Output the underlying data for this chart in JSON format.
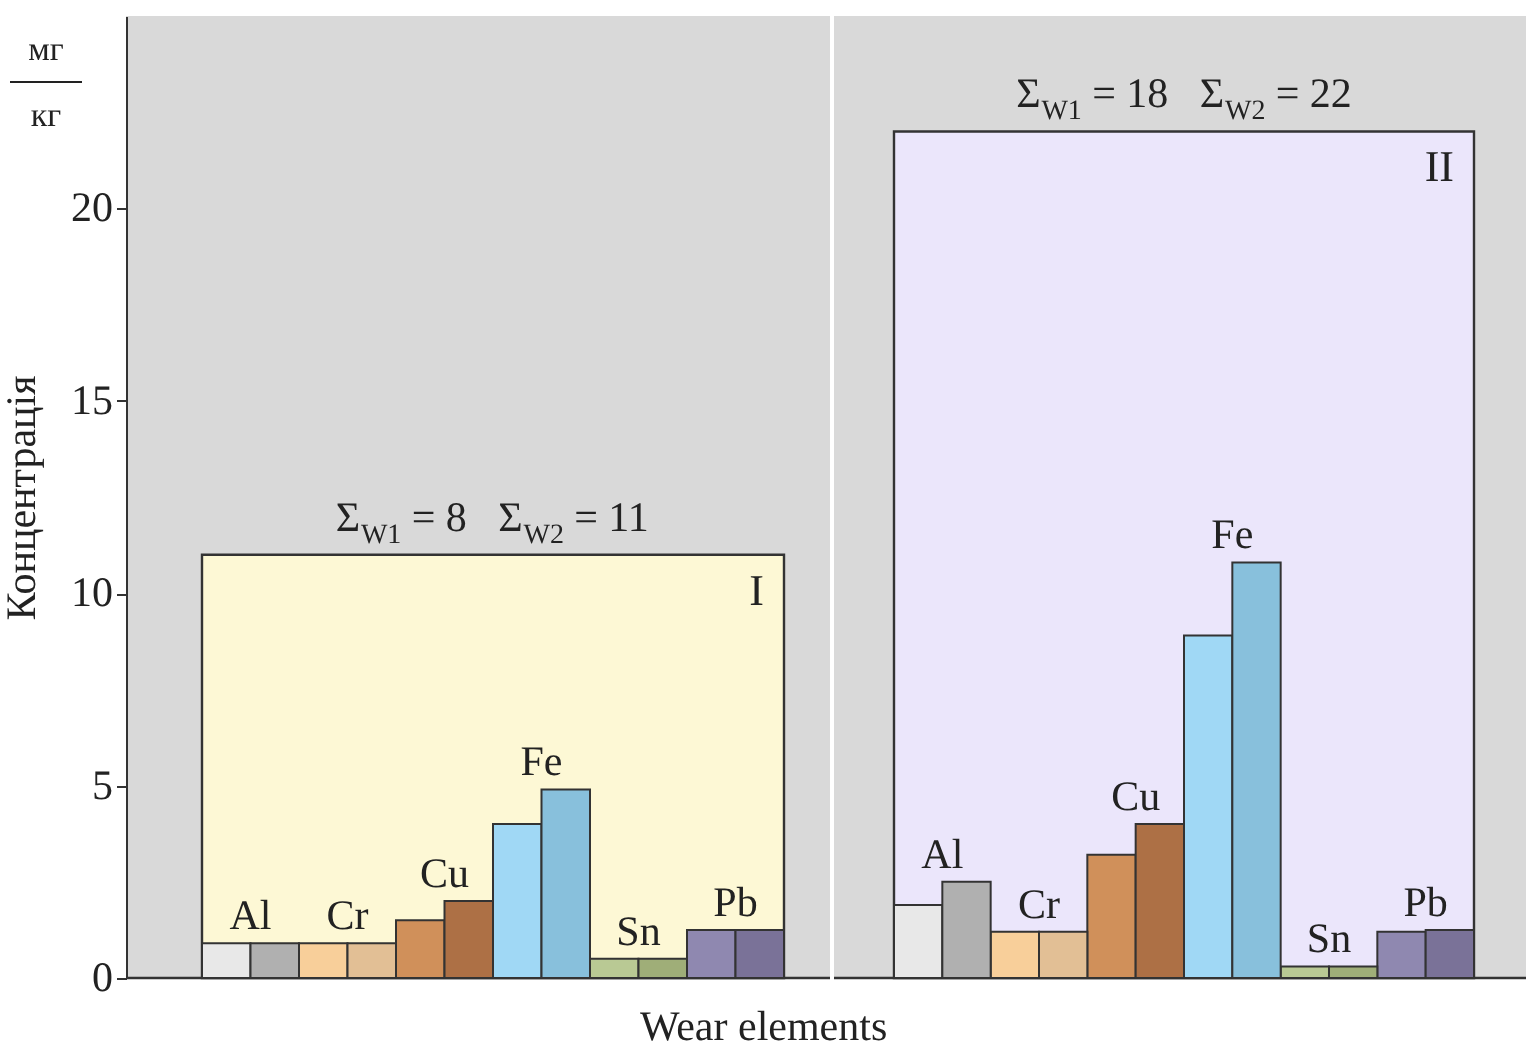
{
  "chart_data": [
    {
      "type": "bar",
      "ylabel": "Концентрація",
      "xlabel": "Wear elements",
      "categories": [
        "Al",
        "Cr",
        "Cu",
        "Fe",
        "Sn",
        "Pb"
      ],
      "ylim": [
        0,
        25
      ],
      "yticks": [
        0,
        5,
        10,
        15,
        20
      ],
      "series": [
        {
          "colors": [
            "#e8e8e8",
            "#f8cf9a",
            "#d0905a",
            "#a0d8f5",
            "#b9c994",
            "#8f88b0"
          ],
          "values": [
            0.9,
            0.9,
            1.5,
            4.0,
            0.5,
            1.25
          ]
        },
        {
          "colors": [
            "#b0b0b0",
            "#e2bf95",
            "#ad7045",
            "#88c0dc",
            "#9fae78",
            "#7a7298"
          ],
          "values": [
            0.9,
            0.9,
            2.0,
            4.9,
            0.5,
            1.25
          ]
        }
      ],
      "bands": [
        {
          "axis": "y",
          "from": 0,
          "to": 11,
          "label": "I",
          "color": "#fdf8d5"
        }
      ],
      "annotations": [
        "Σ$_{W1}$ = 8   Σ$_{W2}$ = 11",
        "мг",
        "кг"
      ]
    },
    {
      "type": "bar",
      "categories": [
        "Al",
        "Cr",
        "Cu",
        "Fe",
        "Sn",
        "Pb"
      ],
      "ylim": [
        0,
        25
      ],
      "yticks": [
        0,
        5,
        10,
        15,
        20
      ],
      "tick_labels": "x",
      "series": [
        {
          "colors": [
            "#e8e8e8",
            "#f8cf9a",
            "#d0905a",
            "#a0d8f5",
            "#b9c994",
            "#8f88b0"
          ],
          "values": [
            1.9,
            1.2,
            3.2,
            8.9,
            0.3,
            1.2
          ]
        },
        {
          "colors": [
            "#b0b0b0",
            "#e2bf95",
            "#ad7045",
            "#88c0dc",
            "#9fae78",
            "#7a7298"
          ],
          "values": [
            2.5,
            1.2,
            4.0,
            10.8,
            0.3,
            1.25
          ]
        }
      ],
      "bands": [
        {
          "axis": "y",
          "from": 0,
          "to": 22,
          "label": "II",
          "color": "#ebe6fb"
        }
      ],
      "annotations": [
        "Σ$_{W1}$ = 18   Σ$_{W2}$ = 22"
      ]
    }
  ]
}
